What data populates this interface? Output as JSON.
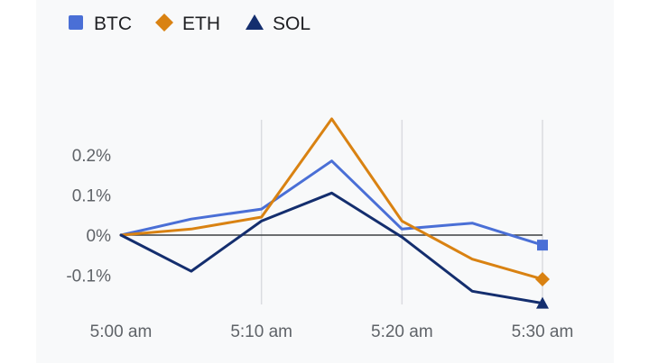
{
  "chart_data": {
    "type": "line",
    "x": [
      "5:00 am",
      "5:05 am",
      "5:10 am",
      "5:15 am",
      "5:20 am",
      "5:25 am",
      "5:30 am"
    ],
    "x_tick_labels": [
      "5:00 am",
      "5:10 am",
      "5:20 am",
      "5:30 am"
    ],
    "y_tick_labels": [
      "0.2%",
      "0.1%",
      "0%",
      "-0.1%"
    ],
    "y_ticks": [
      0.2,
      0.1,
      0,
      -0.1
    ],
    "ylim": [
      -0.17,
      0.29
    ],
    "grid": true,
    "legend_position": "top-left",
    "series": [
      {
        "name": "BTC",
        "color": "#4a6fd6",
        "marker": "square",
        "values": [
          0.0,
          0.04,
          0.065,
          0.185,
          0.015,
          0.03,
          -0.025
        ]
      },
      {
        "name": "ETH",
        "color": "#d98212",
        "marker": "diamond",
        "values": [
          0.0,
          0.015,
          0.045,
          0.29,
          0.035,
          -0.06,
          -0.11
        ]
      },
      {
        "name": "SOL",
        "color": "#142e6e",
        "marker": "triangle",
        "values": [
          0.0,
          -0.09,
          0.035,
          0.105,
          -0.005,
          -0.14,
          -0.17
        ]
      }
    ]
  }
}
